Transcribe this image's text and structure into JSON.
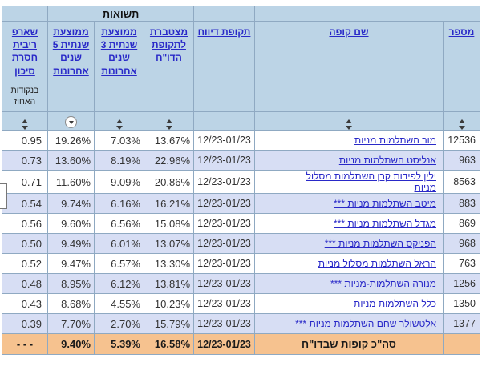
{
  "colors": {
    "header_bg": "#bcd4e6",
    "row_alt": "#d7def4",
    "row_white": "#ffffff",
    "total_bg": "#f6c28f",
    "border": "#8fa9c2",
    "link": "#2929c8",
    "text": "#333333"
  },
  "icons": {
    "sort_toggle": "up-down-triangles",
    "sort_active_desc": "circled-down-triangle"
  },
  "headers": {
    "group": "תשואות",
    "number": "מספר",
    "name": "שם קופה",
    "report": "תקופת דיווח",
    "cumulative": "מצטברת לתקופת הדו\"ח",
    "avg3": "ממוצעת שנתית 3 שנים אחרונות",
    "avg5": "ממוצעת שנתית 5 שנים אחרונות",
    "sharpe": "שארפ ריבית חסרת סיכון",
    "sharpe_note": "בנקודות האחוז"
  },
  "rows": [
    {
      "number": "12536",
      "name": "מור השתלמות מניות",
      "report_period": "12/23-01/23",
      "cumulative": "13.67%",
      "avg3": "7.03%",
      "avg5": "19.26%",
      "sharpe": "0.95"
    },
    {
      "number": "963",
      "name": "אנליסט השתלמות מניות",
      "report_period": "12/23-01/23",
      "cumulative": "22.96%",
      "avg3": "8.19%",
      "avg5": "13.60%",
      "sharpe": "0.73"
    },
    {
      "number": "8563",
      "name": "ילין לפידות קרן השתלמות מסלול מניות",
      "report_period": "12/23-01/23",
      "cumulative": "20.86%",
      "avg3": "9.09%",
      "avg5": "11.60%",
      "sharpe": "0.71"
    },
    {
      "number": "883",
      "name": "מיטב השתלמות מניות ***",
      "report_period": "12/23-01/23",
      "cumulative": "16.21%",
      "avg3": "6.16%",
      "avg5": "9.74%",
      "sharpe": "0.54"
    },
    {
      "number": "869",
      "name": "מגדל השתלמות מניות ***",
      "report_period": "12/23-01/23",
      "cumulative": "15.08%",
      "avg3": "6.56%",
      "avg5": "9.60%",
      "sharpe": "0.56"
    },
    {
      "number": "968",
      "name": "הפניקס השתלמות מניות ***",
      "report_period": "12/23-01/23",
      "cumulative": "13.07%",
      "avg3": "6.01%",
      "avg5": "9.49%",
      "sharpe": "0.50"
    },
    {
      "number": "763",
      "name": "הראל השתלמות מסלול מניות",
      "report_period": "12/23-01/23",
      "cumulative": "13.30%",
      "avg3": "6.57%",
      "avg5": "9.47%",
      "sharpe": "0.52"
    },
    {
      "number": "1256",
      "name": "מנורה השתלמות-מניות ***",
      "report_period": "12/23-01/23",
      "cumulative": "13.81%",
      "avg3": "6.12%",
      "avg5": "8.95%",
      "sharpe": "0.48"
    },
    {
      "number": "1350",
      "name": "כלל השתלמות מניות",
      "report_period": "12/23-01/23",
      "cumulative": "10.23%",
      "avg3": "4.55%",
      "avg5": "8.68%",
      "sharpe": "0.43"
    },
    {
      "number": "1377",
      "name": "אלטשולר שחם השתלמות מניות ***",
      "report_period": "12/23-01/23",
      "cumulative": "15.79%",
      "avg3": "2.70%",
      "avg5": "7.70%",
      "sharpe": "0.39"
    }
  ],
  "total": {
    "label": "סה\"כ קופות שבדו\"ח",
    "report_period": "12/23-01/23",
    "cumulative": "16.58%",
    "avg3": "5.39%",
    "avg5": "9.40%",
    "sharpe": "- - -"
  }
}
